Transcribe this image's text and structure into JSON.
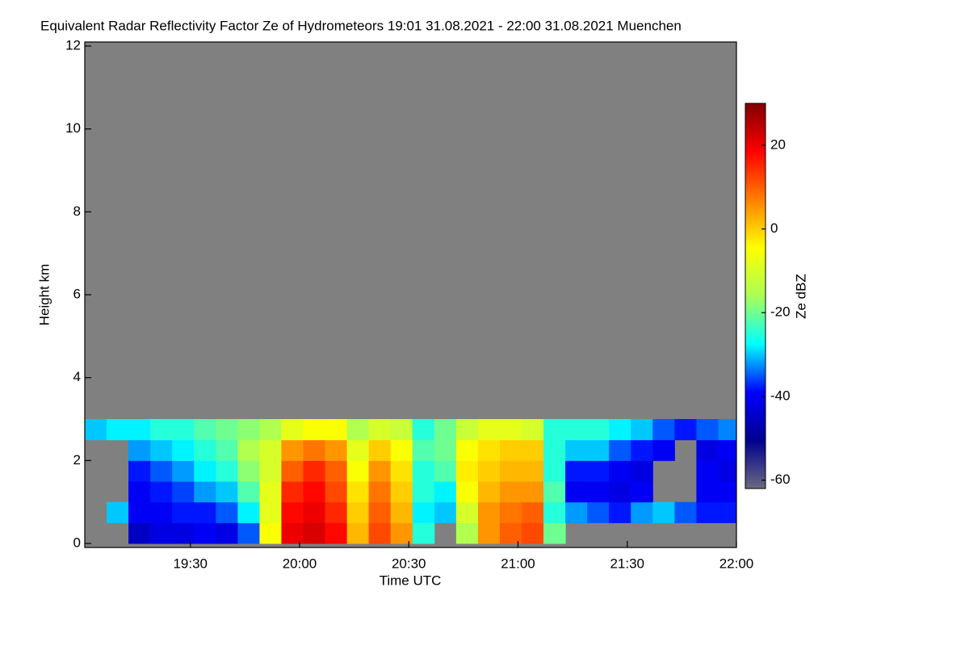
{
  "chart_data": {
    "type": "heatmap",
    "title": "Equivalent Radar Reflectivity Factor Ze of Hydrometeors   19:01 31.08.2021 - 22:00 31.08.2021 Muenchen",
    "x_label": "Time UTC",
    "y_label": "Height km",
    "colorbar_label": "Ze dBZ",
    "x": [
      1144,
      1150,
      1156,
      1162,
      1168,
      1174,
      1180,
      1186,
      1192,
      1198,
      1204,
      1210,
      1216,
      1222,
      1228,
      1234,
      1240,
      1246,
      1252,
      1258,
      1264,
      1270,
      1276,
      1282,
      1288,
      1294,
      1300,
      1306,
      1312,
      1318
    ],
    "y": [
      0.25,
      0.75,
      1.25,
      1.75,
      2.25,
      2.75
    ],
    "z": [
      [
        null,
        null,
        null,
        null,
        null,
        -30
      ],
      [
        null,
        -30,
        null,
        null,
        null,
        -28
      ],
      [
        -45,
        -40,
        -40,
        -38,
        -32,
        -28
      ],
      [
        -42,
        -40,
        -38,
        -35,
        -30,
        -25
      ],
      [
        -42,
        -38,
        -36,
        -32,
        -28,
        -25
      ],
      [
        -40,
        -38,
        -32,
        -28,
        -25,
        -22
      ],
      [
        -42,
        -35,
        -30,
        -25,
        -22,
        -20
      ],
      [
        -35,
        -28,
        -22,
        -18,
        -15,
        -18
      ],
      [
        -5,
        -8,
        -8,
        -10,
        -10,
        -15
      ],
      [
        20,
        18,
        15,
        10,
        5,
        -8
      ],
      [
        22,
        20,
        18,
        15,
        8,
        -5
      ],
      [
        18,
        15,
        12,
        10,
        5,
        -5
      ],
      [
        2,
        0,
        -2,
        -5,
        -8,
        -15
      ],
      [
        12,
        10,
        8,
        5,
        0,
        -10
      ],
      [
        5,
        2,
        0,
        -2,
        -5,
        -12
      ],
      [
        -25,
        -28,
        -25,
        -25,
        -22,
        -25
      ],
      [
        null,
        -30,
        -28,
        -22,
        -20,
        -20
      ],
      [
        -15,
        -10,
        -5,
        -3,
        -5,
        -12
      ],
      [
        5,
        5,
        2,
        0,
        -2,
        -8
      ],
      [
        10,
        8,
        5,
        2,
        0,
        -8
      ],
      [
        12,
        10,
        5,
        2,
        0,
        -10
      ],
      [
        -20,
        -25,
        -22,
        -25,
        -25,
        -25
      ],
      [
        null,
        -32,
        -40,
        -38,
        -30,
        -25
      ],
      [
        null,
        -35,
        -40,
        -38,
        -30,
        -25
      ],
      [
        null,
        -38,
        -42,
        -40,
        -35,
        -28
      ],
      [
        null,
        -32,
        -40,
        -42,
        -38,
        -30
      ],
      [
        null,
        -30,
        null,
        null,
        -40,
        -35
      ],
      [
        null,
        -35,
        null,
        null,
        null,
        -38
      ],
      [
        null,
        -38,
        -40,
        -40,
        -42,
        -35
      ],
      [
        null,
        -38,
        -40,
        -42,
        -40,
        -33
      ]
    ],
    "xlim": [
      1141,
      1320
    ],
    "ylim": [
      0,
      12
    ],
    "zlim": [
      -62,
      30
    ],
    "xticks": [
      {
        "value": 1170,
        "label": "19:30"
      },
      {
        "value": 1200,
        "label": "20:00"
      },
      {
        "value": 1230,
        "label": "20:30"
      },
      {
        "value": 1260,
        "label": "21:00"
      },
      {
        "value": 1290,
        "label": "21:30"
      },
      {
        "value": 1320,
        "label": "22:00"
      }
    ],
    "yticks": [
      0,
      2,
      4,
      6,
      8,
      10,
      12
    ],
    "zticks": [
      -60,
      -40,
      -20,
      0,
      20
    ],
    "colorscale": [
      "#6a6a80",
      "#00008f",
      "#0000ff",
      "#00ffff",
      "#aaff55",
      "#ffff00",
      "#ff8000",
      "#ff0000",
      "#800000"
    ],
    "background_color": "#808080"
  }
}
